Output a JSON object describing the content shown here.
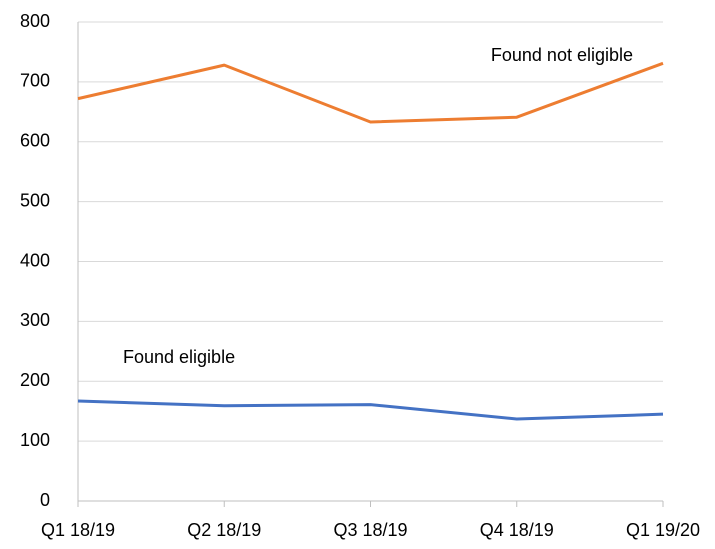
{
  "chart_data": {
    "type": "line",
    "categories": [
      "Q1 18/19",
      "Q2 18/19",
      "Q3 18/19",
      "Q4 18/19",
      "Q1 19/20"
    ],
    "series": [
      {
        "name": "Found eligible",
        "color": "#4472c4",
        "values": [
          167,
          159,
          161,
          137,
          145
        ]
      },
      {
        "name": "Found not eligible",
        "color": "#ed7d31",
        "values": [
          672,
          728,
          633,
          641,
          731
        ]
      }
    ],
    "ylim": [
      0,
      800
    ],
    "yticks": [
      0,
      100,
      200,
      300,
      400,
      500,
      600,
      700,
      800
    ],
    "grid": true
  }
}
